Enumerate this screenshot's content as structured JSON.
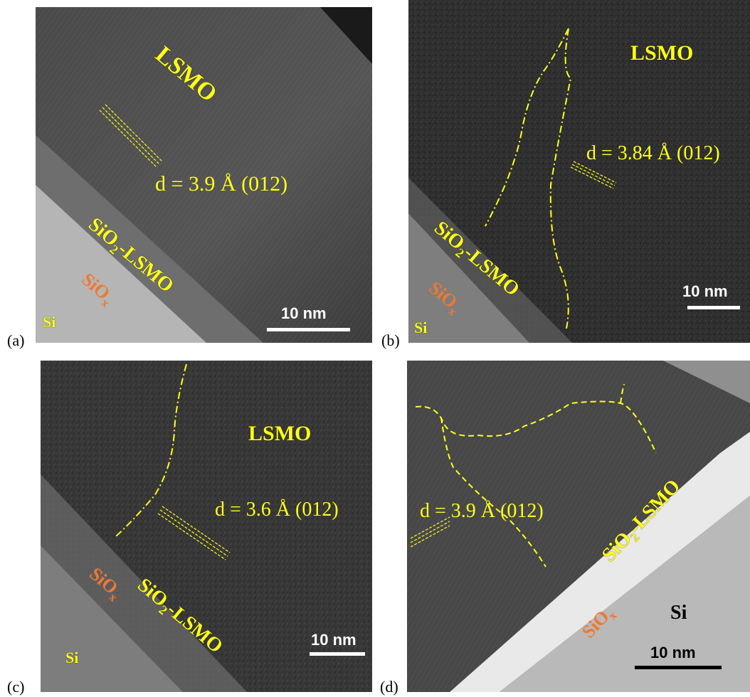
{
  "panels": {
    "a": {
      "label": "(a)",
      "lsmo": "LSMO",
      "dspacing": "d = 3.9 Å  (012)",
      "interface": "SiO",
      "interface_sub": "2",
      "interface_tail": "-LSMO",
      "oxide": "SiO",
      "oxide_sub": "x",
      "substrate": "Si",
      "scalebar": "10 nm"
    },
    "b": {
      "label": "(b)",
      "lsmo": "LSMO",
      "dspacing": "d = 3.84 Å (012)",
      "interface": "SiO",
      "interface_sub": "2",
      "interface_tail": "-LSMO",
      "oxide": "SiO",
      "oxide_sub": "x",
      "substrate": "Si",
      "scalebar": "10 nm"
    },
    "c": {
      "label": "(c)",
      "lsmo": "LSMO",
      "dspacing": "d = 3.6 Å (012)",
      "interface": "SiO",
      "interface_sub": "2",
      "interface_tail": "-LSMO",
      "oxide": "SiO",
      "oxide_sub": "x",
      "substrate": "Si",
      "scalebar": "10 nm"
    },
    "d": {
      "label": "(d)",
      "dspacing": "d = 3.9 Å (012)",
      "interface": "SiO",
      "interface_sub": "2",
      "interface_tail": "-LSMO",
      "oxide": "SiO",
      "oxide_sub": "x",
      "substrate": "Si",
      "scalebar": "10 nm"
    }
  },
  "colors": {
    "label_yellow": "#ffff1a",
    "oxide_orange": "#f07830"
  }
}
